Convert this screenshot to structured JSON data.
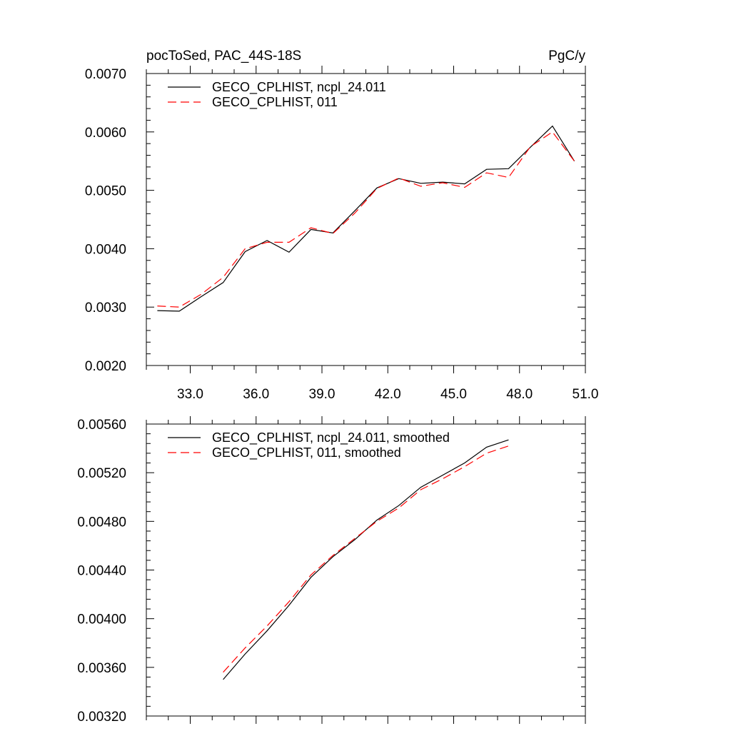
{
  "chart_data": [
    {
      "type": "line",
      "title_left": "pocToSed, PAC_44S-18S",
      "title_right": "PgC/y",
      "xlabel": "",
      "ylabel": "",
      "xlim": [
        31.0,
        51.0
      ],
      "ylim": [
        0.002,
        0.007
      ],
      "x_ticks": [
        33.0,
        36.0,
        39.0,
        42.0,
        45.0,
        48.0,
        51.0
      ],
      "x_tick_labels": [
        "33.0",
        "36.0",
        "39.0",
        "42.0",
        "45.0",
        "48.0",
        "51.0"
      ],
      "y_ticks": [
        0.002,
        0.003,
        0.004,
        0.005,
        0.006,
        0.007
      ],
      "y_tick_labels": [
        "0.0020",
        "0.0030",
        "0.0040",
        "0.0050",
        "0.0060",
        "0.0070"
      ],
      "legend_position": "top-left",
      "series": [
        {
          "name": "GECO_CPLHIST, ncpl_24.011",
          "color": "#000000",
          "dash": "solid",
          "x": [
            31.5,
            32.5,
            33.5,
            34.5,
            35.5,
            36.5,
            37.5,
            38.5,
            39.5,
            40.5,
            41.5,
            42.5,
            43.5,
            44.5,
            45.5,
            46.5,
            47.5,
            48.5,
            49.5,
            50.5
          ],
          "values": [
            0.00294,
            0.00293,
            0.00318,
            0.00342,
            0.00395,
            0.00414,
            0.00394,
            0.00433,
            0.00427,
            0.00465,
            0.00504,
            0.0052,
            0.00512,
            0.00514,
            0.00511,
            0.00536,
            0.00537,
            0.00574,
            0.0061,
            0.0055
          ]
        },
        {
          "name": "GECO_CPLHIST, 011",
          "color": "#ff0000",
          "dash": "dashed",
          "x": [
            31.5,
            32.5,
            33.5,
            34.5,
            35.5,
            36.5,
            37.5,
            38.5,
            39.5,
            40.5,
            41.5,
            42.5,
            43.5,
            44.5,
            45.5,
            46.5,
            47.5,
            48.5,
            49.5,
            50.5
          ],
          "values": [
            0.00302,
            0.003,
            0.00322,
            0.00351,
            0.004,
            0.00411,
            0.00411,
            0.00436,
            0.00426,
            0.00461,
            0.00503,
            0.00521,
            0.00507,
            0.00513,
            0.00505,
            0.0053,
            0.00522,
            0.00575,
            0.006,
            0.0055
          ]
        }
      ]
    },
    {
      "type": "line",
      "title_left": "",
      "title_right": "",
      "xlabel": "",
      "ylabel": "",
      "xlim": [
        31.0,
        51.0
      ],
      "ylim": [
        0.0032,
        0.0056
      ],
      "x_ticks": [
        33.0,
        36.0,
        39.0,
        42.0,
        45.0,
        48.0,
        51.0
      ],
      "x_tick_labels": [],
      "y_ticks": [
        0.0032,
        0.0036,
        0.004,
        0.0044,
        0.0048,
        0.0052,
        0.0056
      ],
      "y_tick_labels": [
        "0.00320",
        "0.00360",
        "0.00400",
        "0.00440",
        "0.00480",
        "0.00520",
        "0.00560"
      ],
      "legend_position": "top-left",
      "series": [
        {
          "name": "GECO_CPLHIST, ncpl_24.011, smoothed",
          "color": "#000000",
          "dash": "solid",
          "x": [
            34.5,
            35.5,
            36.5,
            37.5,
            38.5,
            39.5,
            40.5,
            41.5,
            42.5,
            43.5,
            44.5,
            45.5,
            46.5,
            47.5
          ],
          "values": [
            0.0035,
            0.00371,
            0.0039,
            0.00411,
            0.00434,
            0.00451,
            0.00465,
            0.00481,
            0.00493,
            0.00508,
            0.00518,
            0.00528,
            0.00541,
            0.00547
          ]
        },
        {
          "name": "GECO_CPLHIST, 011, smoothed",
          "color": "#ff0000",
          "dash": "dashed",
          "x": [
            34.5,
            35.5,
            36.5,
            37.5,
            38.5,
            39.5,
            40.5,
            41.5,
            42.5,
            43.5,
            44.5,
            45.5,
            46.5,
            47.5
          ],
          "values": [
            0.00356,
            0.00376,
            0.00394,
            0.00414,
            0.00436,
            0.00452,
            0.00466,
            0.0048,
            0.00491,
            0.00506,
            0.00515,
            0.00525,
            0.00536,
            0.00542
          ]
        }
      ]
    }
  ]
}
